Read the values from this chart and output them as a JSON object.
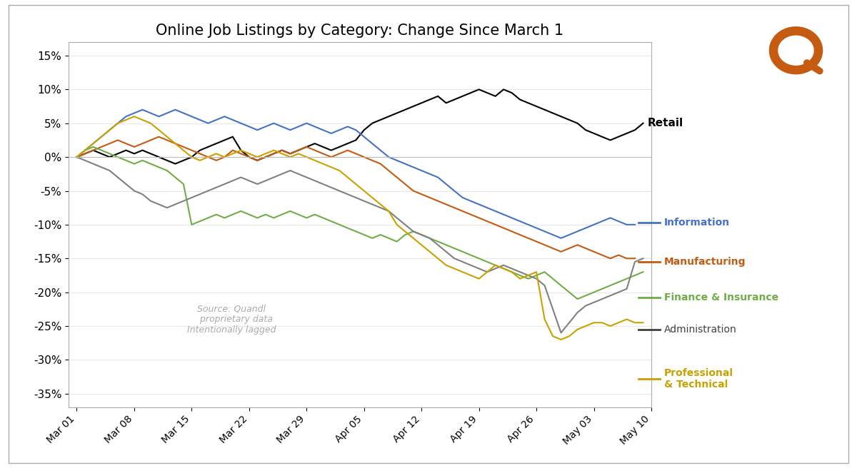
{
  "title": "Online Job Listings by Category: Change Since March 1",
  "ylim": [
    -0.37,
    0.17
  ],
  "yticks": [
    -0.35,
    -0.3,
    -0.25,
    -0.2,
    -0.15,
    -0.1,
    -0.05,
    0.0,
    0.05,
    0.1,
    0.15
  ],
  "ytick_labels": [
    "-35%",
    "-30%",
    "-25%",
    "-20%",
    "-15%",
    "-10%",
    "-5%",
    "0%",
    "5%",
    "10%",
    "15%"
  ],
  "x_labels": [
    "Mar 01",
    "Mar 08",
    "Mar 15",
    "Mar 22",
    "Mar 29",
    "Apr 05",
    "Apr 12",
    "Apr 19",
    "Apr 26",
    "May 03",
    "May 10"
  ],
  "x_positions": [
    0,
    7,
    14,
    21,
    28,
    35,
    42,
    49,
    56,
    63,
    70
  ],
  "source_text": "Source: Quandl\n   proprietary data\nIntentionally lagged",
  "series": {
    "Retail": {
      "color": "#000000",
      "values": [
        0.0,
        0.005,
        0.01,
        0.005,
        0.0,
        0.005,
        0.01,
        0.005,
        0.01,
        0.005,
        0.0,
        -0.005,
        -0.01,
        -0.005,
        0.0,
        0.01,
        0.015,
        0.02,
        0.025,
        0.03,
        0.01,
        0.0,
        -0.005,
        0.0,
        0.005,
        0.01,
        0.005,
        0.01,
        0.015,
        0.02,
        0.015,
        0.01,
        0.015,
        0.02,
        0.025,
        0.04,
        0.05,
        0.055,
        0.06,
        0.065,
        0.07,
        0.075,
        0.08,
        0.085,
        0.09,
        0.08,
        0.085,
        0.09,
        0.095,
        0.1,
        0.095,
        0.09,
        0.1,
        0.095,
        0.085,
        0.08,
        0.075,
        0.07,
        0.065,
        0.06,
        0.055,
        0.05,
        0.04,
        0.035,
        0.03,
        0.025,
        0.03,
        0.035,
        0.04,
        0.05
      ]
    },
    "Information": {
      "color": "#4472C4",
      "values": [
        0.0,
        0.01,
        0.02,
        0.03,
        0.04,
        0.05,
        0.06,
        0.065,
        0.07,
        0.065,
        0.06,
        0.065,
        0.07,
        0.065,
        0.06,
        0.055,
        0.05,
        0.055,
        0.06,
        0.055,
        0.05,
        0.045,
        0.04,
        0.045,
        0.05,
        0.045,
        0.04,
        0.045,
        0.05,
        0.045,
        0.04,
        0.035,
        0.04,
        0.045,
        0.04,
        0.03,
        0.02,
        0.01,
        0.0,
        -0.005,
        -0.01,
        -0.015,
        -0.02,
        -0.025,
        -0.03,
        -0.04,
        -0.05,
        -0.06,
        -0.065,
        -0.07,
        -0.075,
        -0.08,
        -0.085,
        -0.09,
        -0.095,
        -0.1,
        -0.105,
        -0.11,
        -0.115,
        -0.12,
        -0.115,
        -0.11,
        -0.105,
        -0.1,
        -0.095,
        -0.09,
        -0.095,
        -0.1,
        -0.1
      ]
    },
    "Manufacturing": {
      "color": "#C55A11",
      "values": [
        0.0,
        0.005,
        0.01,
        0.015,
        0.02,
        0.025,
        0.02,
        0.015,
        0.02,
        0.025,
        0.03,
        0.025,
        0.02,
        0.015,
        0.01,
        0.005,
        0.0,
        -0.005,
        0.0,
        0.01,
        0.005,
        0.0,
        -0.005,
        0.0,
        0.005,
        0.01,
        0.005,
        0.01,
        0.015,
        0.01,
        0.005,
        0.0,
        0.005,
        0.01,
        0.005,
        0.0,
        -0.005,
        -0.01,
        -0.02,
        -0.03,
        -0.04,
        -0.05,
        -0.055,
        -0.06,
        -0.065,
        -0.07,
        -0.075,
        -0.08,
        -0.085,
        -0.09,
        -0.095,
        -0.1,
        -0.105,
        -0.11,
        -0.115,
        -0.12,
        -0.125,
        -0.13,
        -0.135,
        -0.14,
        -0.135,
        -0.13,
        -0.135,
        -0.14,
        -0.145,
        -0.15,
        -0.145,
        -0.15,
        -0.15
      ]
    },
    "Finance & Insurance": {
      "color": "#70AD47",
      "values": [
        0.0,
        0.01,
        0.015,
        0.01,
        0.005,
        0.0,
        -0.005,
        -0.01,
        -0.005,
        -0.01,
        -0.015,
        -0.02,
        -0.03,
        -0.04,
        -0.1,
        -0.095,
        -0.09,
        -0.085,
        -0.09,
        -0.085,
        -0.08,
        -0.085,
        -0.09,
        -0.085,
        -0.09,
        -0.085,
        -0.08,
        -0.085,
        -0.09,
        -0.085,
        -0.09,
        -0.095,
        -0.1,
        -0.105,
        -0.11,
        -0.115,
        -0.12,
        -0.115,
        -0.12,
        -0.125,
        -0.115,
        -0.11,
        -0.115,
        -0.12,
        -0.125,
        -0.13,
        -0.135,
        -0.14,
        -0.145,
        -0.15,
        -0.155,
        -0.16,
        -0.165,
        -0.17,
        -0.175,
        -0.18,
        -0.175,
        -0.17,
        -0.18,
        -0.19,
        -0.2,
        -0.21,
        -0.205,
        -0.2,
        -0.195,
        -0.19,
        -0.185,
        -0.18,
        -0.175,
        -0.17
      ]
    },
    "Administration": {
      "color": "#808080",
      "values": [
        0.0,
        -0.005,
        -0.01,
        -0.015,
        -0.02,
        -0.03,
        -0.04,
        -0.05,
        -0.055,
        -0.065,
        -0.07,
        -0.075,
        -0.07,
        -0.065,
        -0.06,
        -0.055,
        -0.05,
        -0.045,
        -0.04,
        -0.035,
        -0.03,
        -0.035,
        -0.04,
        -0.035,
        -0.03,
        -0.025,
        -0.02,
        -0.025,
        -0.03,
        -0.035,
        -0.04,
        -0.045,
        -0.05,
        -0.055,
        -0.06,
        -0.065,
        -0.07,
        -0.075,
        -0.08,
        -0.09,
        -0.1,
        -0.11,
        -0.115,
        -0.12,
        -0.13,
        -0.14,
        -0.15,
        -0.155,
        -0.16,
        -0.165,
        -0.17,
        -0.165,
        -0.16,
        -0.165,
        -0.17,
        -0.175,
        -0.18,
        -0.19,
        -0.225,
        -0.26,
        -0.245,
        -0.23,
        -0.22,
        -0.215,
        -0.21,
        -0.205,
        -0.2,
        -0.195,
        -0.155,
        -0.15
      ]
    },
    "Professional & Technical": {
      "color": "#C9A100",
      "values": [
        0.0,
        0.01,
        0.02,
        0.03,
        0.04,
        0.05,
        0.055,
        0.06,
        0.055,
        0.05,
        0.04,
        0.03,
        0.02,
        0.01,
        0.0,
        -0.005,
        0.0,
        0.005,
        0.0,
        0.005,
        0.01,
        0.005,
        0.0,
        0.005,
        0.01,
        0.005,
        0.0,
        0.005,
        0.0,
        -0.005,
        -0.01,
        -0.015,
        -0.02,
        -0.03,
        -0.04,
        -0.05,
        -0.06,
        -0.07,
        -0.08,
        -0.1,
        -0.11,
        -0.12,
        -0.13,
        -0.14,
        -0.15,
        -0.16,
        -0.165,
        -0.17,
        -0.175,
        -0.18,
        -0.17,
        -0.16,
        -0.165,
        -0.17,
        -0.18,
        -0.175,
        -0.17,
        -0.24,
        -0.265,
        -0.27,
        -0.265,
        -0.255,
        -0.25,
        -0.245,
        -0.245,
        -0.25,
        -0.245,
        -0.24,
        -0.245,
        -0.245
      ]
    }
  },
  "legend_items": [
    {
      "label": "Retail",
      "color": "#000000",
      "bold": true
    },
    {
      "label": "Information",
      "color": "#4472C4",
      "bold": true
    },
    {
      "label": "Manufacturing",
      "color": "#C55A11",
      "bold": true
    },
    {
      "label": "Finance & Insurance",
      "color": "#70AD47",
      "bold": true
    },
    {
      "label": "Administration",
      "color": "#404040",
      "bold": false
    },
    {
      "label": "Professional\n& Technical",
      "color": "#C9A100",
      "bold": true
    }
  ]
}
